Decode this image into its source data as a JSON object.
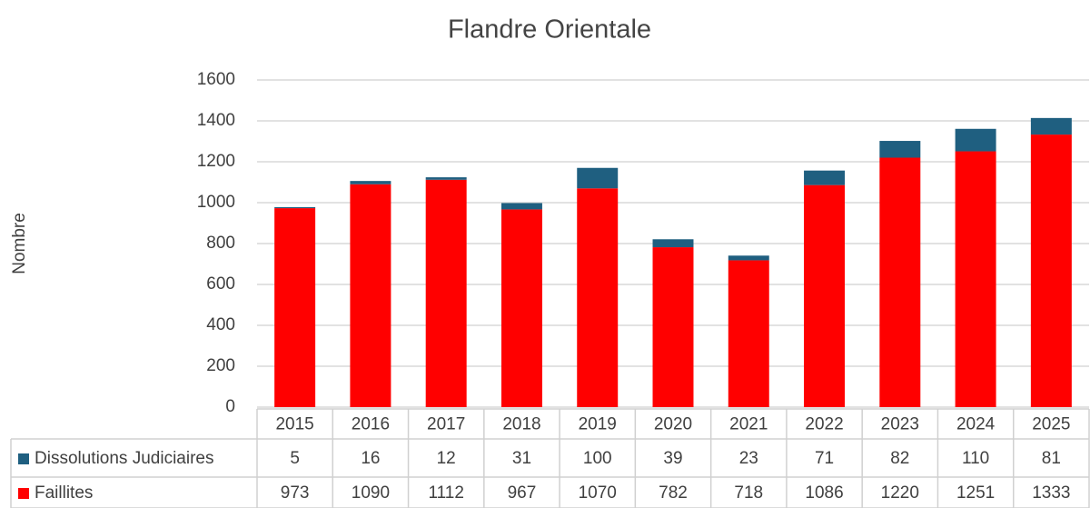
{
  "chart_data": {
    "type": "stacked_bar",
    "title": "Flandre Orientale",
    "y_label": "Nombre",
    "categories": [
      "2015",
      "2016",
      "2017",
      "2018",
      "2019",
      "2020",
      "2021",
      "2022",
      "2023",
      "2024",
      "2025"
    ],
    "series": [
      {
        "name": "Dissolutions Judiciaires",
        "color": "#1f5f80",
        "values": [
          5,
          16,
          12,
          31,
          100,
          39,
          23,
          71,
          82,
          110,
          81
        ]
      },
      {
        "name": "Faillites",
        "color": "#ff0000",
        "values": [
          973,
          1090,
          1112,
          967,
          1070,
          782,
          718,
          1086,
          1220,
          1251,
          1333
        ]
      }
    ],
    "ylim": [
      0,
      1600
    ],
    "yticks": [
      0,
      200,
      400,
      600,
      800,
      1000,
      1200,
      1400,
      1600
    ],
    "grid": true,
    "data_table": true
  }
}
